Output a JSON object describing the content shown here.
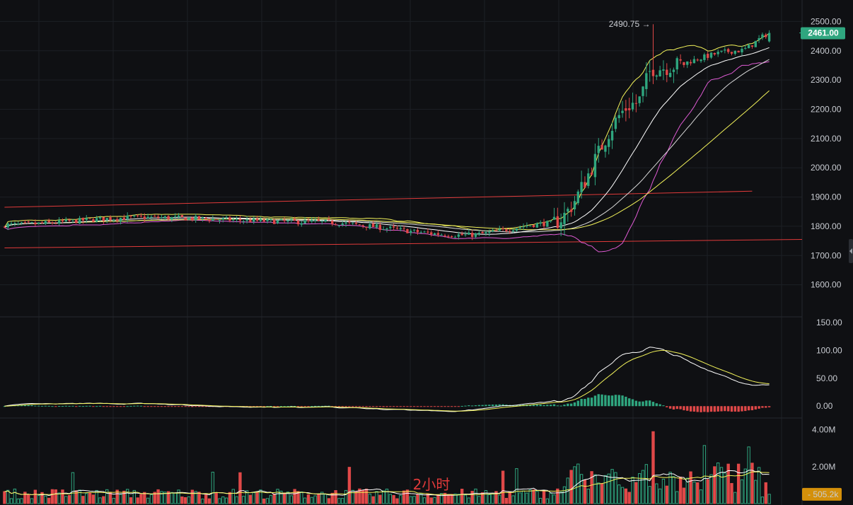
{
  "timeframe_label": "2小时",
  "colors": {
    "background": "#0f1013",
    "grid": "#1c1f24",
    "up": "#2fa67f",
    "down": "#e04848",
    "channel": "#e03a3a",
    "ma_fast": "#ffffff",
    "ma_mid": "#f3f35a",
    "boll_upper": "#f3f35a",
    "boll_lower": "#e05bd5",
    "last_price_bg": "#2fa67f",
    "last_volume_bg": "#d4900a"
  },
  "chart_data": [
    {
      "type": "candlestick",
      "panel": "price",
      "y_ticks": [
        "2500.00",
        "2400.00",
        "2300.00",
        "2200.00",
        "2100.00",
        "2000.00",
        "1900.00",
        "1800.00",
        "1700.00",
        "1600.00"
      ],
      "ylim": [
        1500,
        2530
      ],
      "last_price": "2461.00",
      "high_marker": "2490.75",
      "approx_path": {
        "segments": [
          {
            "bars": [
              0,
              40
            ],
            "from": 1805,
            "to": 1830
          },
          {
            "bars": [
              40,
              90
            ],
            "from": 1830,
            "to": 1815
          },
          {
            "bars": [
              90,
              135
            ],
            "from": 1815,
            "to": 1770
          },
          {
            "bars": [
              135,
              160
            ],
            "from": 1770,
            "to": 1810
          },
          {
            "bars": [
              160,
              185
            ],
            "from": 1810,
            "to": 2220
          },
          {
            "bars": [
              185,
              190
            ],
            "from": 2220,
            "to": 2340
          },
          {
            "bars": [
              190,
              215
            ],
            "from": 2340,
            "to": 2400
          },
          {
            "bars": [
              215,
              225
            ],
            "from": 2400,
            "to": 2461
          }
        ],
        "count": 225
      },
      "channel_lines": [
        {
          "from": [
            0,
            1865
          ],
          "to": [
            219,
            1920
          ]
        },
        {
          "from": [
            0,
            1726
          ],
          "to": [
            240,
            1755
          ]
        }
      ],
      "grid": true
    },
    {
      "type": "macd",
      "panel": "indicator",
      "y_ticks": [
        "150.00",
        "100.00",
        "50.00",
        "0.00"
      ],
      "ylim": [
        -20,
        155
      ]
    },
    {
      "type": "volume",
      "panel": "volume",
      "y_ticks": [
        "4.00M",
        "2.00M"
      ],
      "ylim": [
        0,
        4.6
      ],
      "last_volume": "505.2k"
    }
  ]
}
